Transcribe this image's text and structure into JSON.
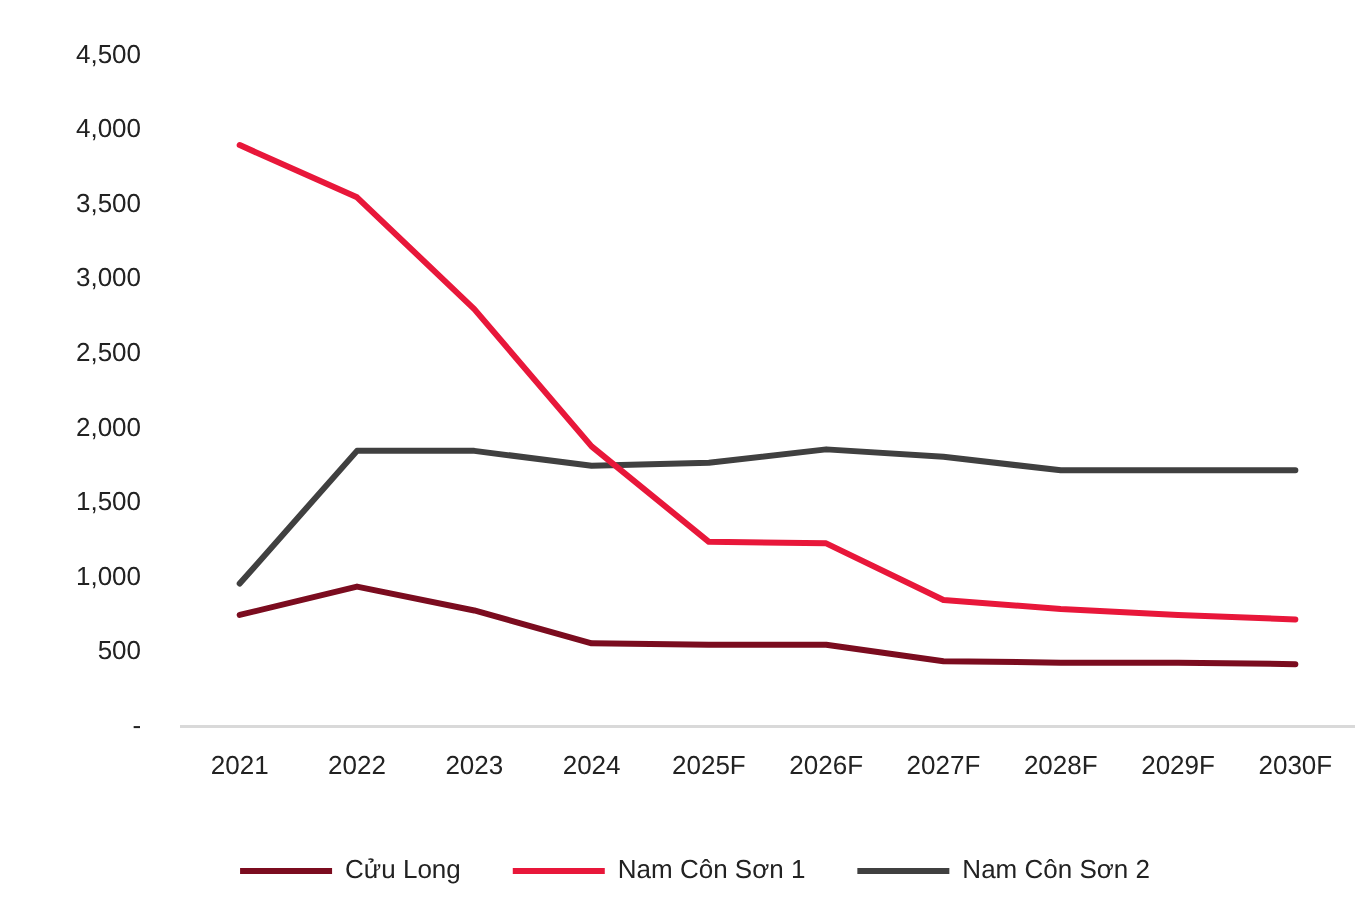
{
  "chart_data": {
    "type": "line",
    "categories": [
      "2021",
      "2022",
      "2023",
      "2024",
      "2025F",
      "2026F",
      "2027F",
      "2028F",
      "2029F",
      "2030F"
    ],
    "series": [
      {
        "name": "Cửu Long",
        "color": "#7b0c1f",
        "values": [
          750,
          940,
          780,
          560,
          550,
          550,
          440,
          430,
          430,
          420
        ]
      },
      {
        "name": "Nam Côn Sơn 1",
        "color": "#e8173a",
        "values": [
          3900,
          3550,
          2800,
          1880,
          1240,
          1230,
          850,
          790,
          750,
          720
        ]
      },
      {
        "name": "Nam Côn Sơn 2",
        "color": "#404040",
        "values": [
          960,
          1850,
          1850,
          1750,
          1770,
          1860,
          1810,
          1720,
          1720,
          1720
        ]
      }
    ],
    "ylim": [
      0,
      4500
    ],
    "yticks": [
      {
        "value": 0,
        "label": "-"
      },
      {
        "value": 500,
        "label": "500"
      },
      {
        "value": 1000,
        "label": "1,000"
      },
      {
        "value": 1500,
        "label": "1,500"
      },
      {
        "value": 2000,
        "label": "2,000"
      },
      {
        "value": 2500,
        "label": "2,500"
      },
      {
        "value": 3000,
        "label": "3,000"
      },
      {
        "value": 3500,
        "label": "3,500"
      },
      {
        "value": 4000,
        "label": "4,000"
      },
      {
        "value": 4500,
        "label": "4,500"
      }
    ],
    "grid": false,
    "legend": "bottom",
    "marker": "none",
    "line_style": "solid"
  }
}
